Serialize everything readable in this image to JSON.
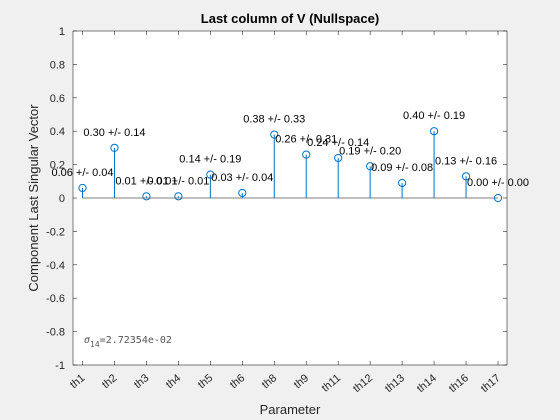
{
  "chart_data": {
    "type": "stem",
    "title": "Last column of V (Nullspace)",
    "xlabel": "Parameter",
    "ylabel": "Component Last Singular Vector",
    "ylim": [
      -1,
      1
    ],
    "yticks": [
      "-1",
      "-0.8",
      "-0.6",
      "-0.4",
      "-0.2",
      "0",
      "0.2",
      "0.4",
      "0.6",
      "0.8",
      "1"
    ],
    "categories": [
      "th1",
      "th2",
      "th3",
      "th4",
      "th5",
      "th6",
      "th8",
      "th9",
      "th11",
      "th12",
      "th13",
      "th14",
      "th16",
      "th17"
    ],
    "values": [
      0.06,
      0.3,
      0.01,
      0.01,
      0.14,
      0.03,
      0.38,
      0.26,
      0.24,
      0.19,
      0.09,
      0.4,
      0.13,
      0.0
    ],
    "data_labels": [
      "0.06 +/- 0.04",
      "0.30 +/- 0.14",
      "0.01 +/- 0.01",
      "0.01 +/- 0.01",
      "0.14 +/- 0.19",
      "0.03 +/- 0.04",
      "0.38 +/- 0.33",
      "0.26 +/- 0.31",
      "0.24 +/- 0.14",
      "0.19 +/- 0.20",
      "0.09 +/- 0.08",
      "0.40 +/- 0.19",
      "0.13 +/- 0.16",
      "0.00 +/- 0.00"
    ],
    "annotation": {
      "symbol": "σ",
      "subscript": "14",
      "text": "=2.72354e-02"
    },
    "colors": {
      "stem": "#0072BD",
      "axes": "#262626",
      "background": "#ffffff",
      "figure": "#f0f0f0"
    }
  }
}
